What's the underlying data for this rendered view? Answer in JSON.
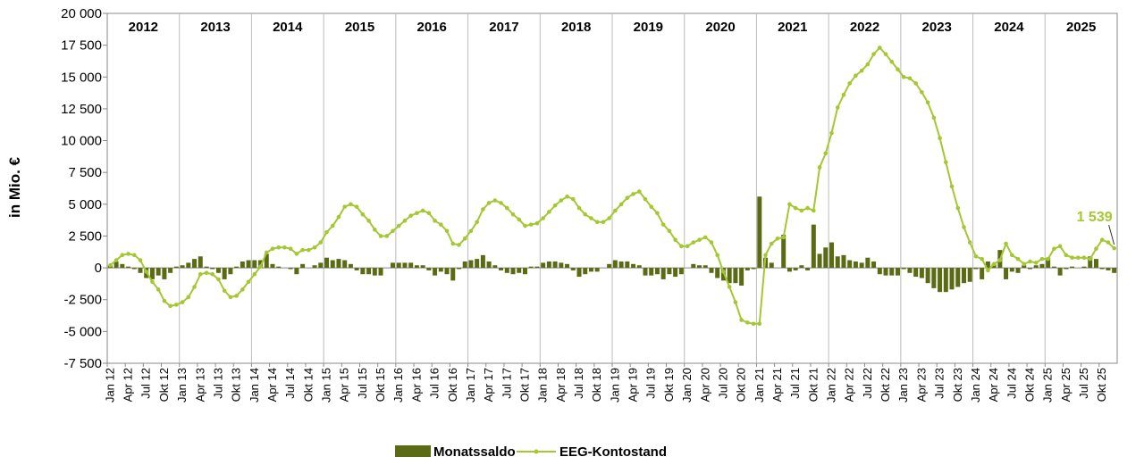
{
  "chart_data": {
    "type": "bar_line",
    "y_label": "in Mio. €",
    "year_labels": [
      "2012",
      "2013",
      "2014",
      "2015",
      "2016",
      "2017",
      "2018",
      "2019",
      "2020",
      "2021",
      "2022",
      "2023",
      "2024",
      "2025"
    ],
    "categories": [
      "Jan 12",
      null,
      null,
      "Apr 12",
      null,
      null,
      "Jul 12",
      null,
      null,
      "Okt 12",
      null,
      null,
      "Jan 13",
      null,
      null,
      "Apr 13",
      null,
      null,
      "Jul 13",
      null,
      null,
      "Okt 13",
      null,
      null,
      "Jan 14",
      null,
      null,
      "Apr 14",
      null,
      null,
      "Jul 14",
      null,
      null,
      "Okt 14",
      null,
      null,
      "Jan 15",
      null,
      null,
      "Apr 15",
      null,
      null,
      "Jul 15",
      null,
      null,
      "Okt 15",
      null,
      null,
      "Jan 16",
      null,
      null,
      "Apr 16",
      null,
      null,
      "Jul 16",
      null,
      null,
      "Okt 16",
      null,
      null,
      "Jan 17",
      null,
      null,
      "Apr 17",
      null,
      null,
      "Jul 17",
      null,
      null,
      "Okt 17",
      null,
      null,
      "Jan 18",
      null,
      null,
      "Apr 18",
      null,
      null,
      "Jul 18",
      null,
      null,
      "Okt 18",
      null,
      null,
      "Jan 19",
      null,
      null,
      "Apr 19",
      null,
      null,
      "Jul 19",
      null,
      null,
      "Okt 19",
      null,
      null,
      "Jan 20",
      null,
      null,
      "Apr 20",
      null,
      null,
      "Jul 20",
      null,
      null,
      "Okt 20",
      null,
      null,
      "Jan 21",
      null,
      null,
      "Apr 21",
      null,
      null,
      "Jul 21",
      null,
      null,
      "Okt 21",
      null,
      null,
      "Jan 22",
      null,
      null,
      "Apr 22",
      null,
      null,
      "Jul 22",
      null,
      null,
      "Okt 22",
      null,
      null,
      "Jan 23",
      null,
      null,
      "Apr 23",
      null,
      null,
      "Jul 23",
      null,
      null,
      "Okt 23",
      null,
      null,
      "Jan 24",
      null,
      null,
      "Apr 24",
      null,
      null,
      "Jul 24",
      null,
      null,
      "Okt 24",
      null,
      null,
      "Jan 25",
      null,
      null,
      "Apr 25",
      null,
      null,
      "Jul 25",
      null,
      null,
      "Okt 25",
      null,
      null
    ],
    "series": [
      {
        "name": "Monatssaldo",
        "type": "bar",
        "color": "#5b6b14",
        "values": [
          200,
          500,
          300,
          100,
          -100,
          -400,
          -800,
          -900,
          -600,
          -900,
          -400,
          100,
          200,
          400,
          700,
          900,
          100,
          -100,
          -400,
          -900,
          -500,
          100,
          500,
          600,
          600,
          600,
          1100,
          300,
          100,
          0,
          -100,
          -500,
          300,
          0,
          200,
          400,
          800,
          600,
          700,
          600,
          300,
          -200,
          -500,
          -500,
          -600,
          -600,
          0,
          400,
          400,
          400,
          400,
          200,
          200,
          -200,
          -600,
          -300,
          -500,
          -1000,
          -100,
          500,
          600,
          700,
          1000,
          500,
          200,
          -200,
          -400,
          -500,
          -400,
          -500,
          100,
          100,
          400,
          500,
          500,
          400,
          300,
          -200,
          -700,
          -500,
          -300,
          -300,
          0,
          300,
          600,
          500,
          500,
          300,
          200,
          -600,
          -600,
          -500,
          -900,
          -500,
          -700,
          -500,
          0,
          300,
          200,
          200,
          -400,
          -800,
          -1000,
          -1200,
          -1200,
          -1400,
          -200,
          -100,
          5600,
          800,
          400,
          0,
          2600,
          -300,
          -200,
          200,
          -200,
          3400,
          1100,
          1600,
          2000,
          900,
          1000,
          600,
          500,
          400,
          800,
          500,
          -500,
          -600,
          -600,
          -600,
          -100,
          -400,
          -700,
          -800,
          -1200,
          -1600,
          -1900,
          -1900,
          -1700,
          -1500,
          -1200,
          -1100,
          -100,
          -900,
          500,
          300,
          1400,
          -900,
          -300,
          -400,
          200,
          -100,
          200,
          300,
          800,
          100,
          -600,
          -100,
          100,
          0,
          100,
          900,
          700,
          -100,
          -200,
          -400
        ]
      },
      {
        "name": "EEG-Kontostand",
        "type": "line",
        "color": "#a4c732",
        "values": [
          200,
          600,
          1000,
          1100,
          1000,
          600,
          -300,
          -1100,
          -1700,
          -2600,
          -3000,
          -2900,
          -2700,
          -2300,
          -1500,
          -500,
          -400,
          -500,
          -900,
          -1800,
          -2300,
          -2200,
          -1700,
          -1100,
          -500,
          100,
          1200,
          1500,
          1600,
          1600,
          1500,
          1100,
          1400,
          1400,
          1600,
          2000,
          2800,
          3300,
          4000,
          4800,
          5000,
          4800,
          4200,
          3700,
          3000,
          2500,
          2500,
          2900,
          3300,
          3700,
          4100,
          4300,
          4500,
          4300,
          3700,
          3400,
          2900,
          1900,
          1800,
          2300,
          2900,
          3600,
          4600,
          5100,
          5300,
          5100,
          4700,
          4200,
          3800,
          3300,
          3400,
          3500,
          3900,
          4400,
          4900,
          5300,
          5600,
          5400,
          4700,
          4200,
          3900,
          3600,
          3600,
          3900,
          4500,
          5000,
          5500,
          5800,
          6000,
          5400,
          4800,
          4300,
          3400,
          2900,
          2200,
          1700,
          1700,
          2000,
          2200,
          2400,
          2000,
          1000,
          -300,
          -1500,
          -2700,
          -4100,
          -4300,
          -4400,
          -4400,
          1000,
          1900,
          2300,
          2400,
          5000,
          4700,
          4500,
          4700,
          4500,
          7900,
          9000,
          10600,
          12600,
          13600,
          14500,
          15100,
          15500,
          16000,
          16800,
          17300,
          16800,
          16200,
          15600,
          15000,
          14900,
          14500,
          13800,
          13000,
          11800,
          10200,
          8300,
          6400,
          4700,
          3200,
          2000,
          900,
          700,
          -200,
          300,
          600,
          1900,
          1000,
          700,
          300,
          500,
          400,
          700,
          700,
          1500,
          1700,
          1000,
          800,
          800,
          800,
          700,
          1500,
          2200,
          2000,
          1539
        ],
        "value_labels": [
          null,
          null,
          null,
          null,
          null,
          null,
          null,
          null,
          null,
          null,
          null,
          null,
          null,
          null,
          null,
          null,
          null,
          null,
          null,
          null,
          null,
          null,
          null,
          null,
          null,
          null,
          null,
          null,
          null,
          null,
          null,
          null,
          null,
          null,
          null,
          null,
          null,
          null,
          null,
          null,
          null,
          null,
          null,
          null,
          null,
          null,
          null,
          null,
          null,
          null,
          null,
          null,
          null,
          null,
          null,
          null,
          null,
          null,
          null,
          null,
          null,
          null,
          null,
          null,
          null,
          null,
          null,
          null,
          null,
          null,
          null,
          null,
          null,
          null,
          null,
          null,
          null,
          null,
          null,
          null,
          null,
          null,
          null,
          null,
          null,
          null,
          null,
          null,
          null,
          null,
          null,
          null,
          null,
          null,
          null,
          null,
          null,
          null,
          null,
          null,
          null,
          null,
          null,
          null,
          null,
          null,
          null,
          null,
          null,
          null,
          null,
          null,
          null,
          null,
          null,
          null,
          null,
          null,
          null,
          null,
          null,
          null,
          null,
          null,
          null,
          null,
          null,
          null,
          null,
          null,
          null,
          null,
          null,
          null,
          null,
          null,
          null,
          null,
          null,
          null,
          null,
          null,
          null,
          null,
          null,
          null,
          null,
          null,
          null,
          null,
          null,
          null,
          null,
          null,
          null,
          null,
          null,
          null,
          null,
          null,
          null,
          null,
          null,
          null,
          null,
          null,
          null,
          "1 539"
        ]
      }
    ],
    "ylim": [
      -7500,
      20000
    ],
    "yticks": [
      {
        "value": -7500,
        "label": "-7 500"
      },
      {
        "value": -5000,
        "label": "-5 000"
      },
      {
        "value": -2500,
        "label": "-2 500"
      },
      0,
      {
        "value": 2500,
        "label": "2 500"
      },
      {
        "value": 5000,
        "label": "5 000"
      },
      {
        "value": 7500,
        "label": "7 500"
      },
      {
        "value": 10000,
        "label": "10 000"
      },
      {
        "value": 12500,
        "label": "12 500"
      },
      {
        "value": 15000,
        "label": "15 000"
      },
      {
        "value": 17500,
        "label": "17 500"
      },
      {
        "value": 20000,
        "label": "20 000"
      }
    ]
  }
}
